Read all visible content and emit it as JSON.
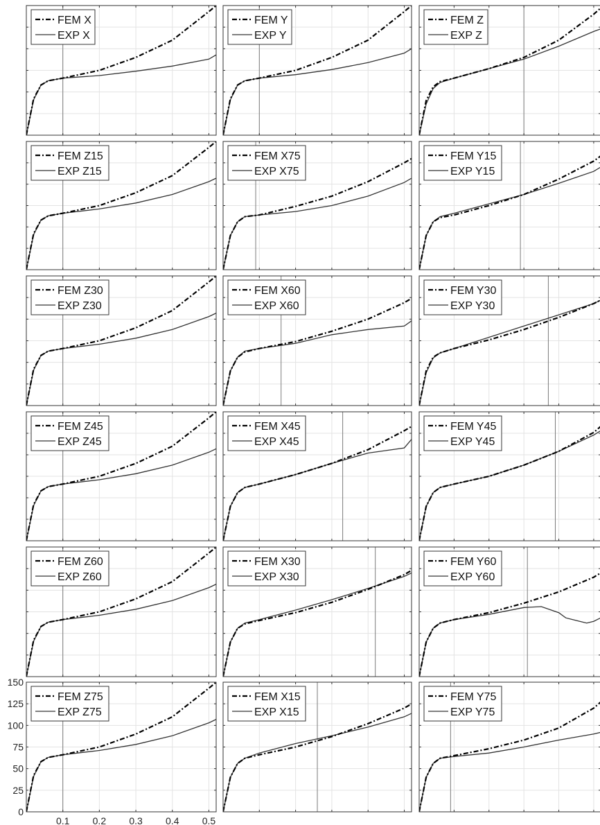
{
  "chart_data": {
    "type": "line",
    "layout": {
      "rows": 6,
      "cols": 3
    },
    "xlim": [
      0,
      0.52
    ],
    "ylim": [
      0,
      150
    ],
    "x_ticks": [
      0.1,
      0.2,
      0.3,
      0.4,
      0.5
    ],
    "x_tick_labels": [
      "0.1",
      "0.2",
      "0.3",
      "0.4",
      "0.5"
    ],
    "y_ticks": [
      0,
      25,
      50,
      75,
      100,
      125,
      150
    ],
    "y_tick_labels": [
      "0",
      "25",
      "50",
      "75",
      "100",
      "125",
      "150"
    ],
    "grid": true,
    "legend_location": "top-left",
    "colors": {
      "fem": "#000000",
      "exp": "#333333",
      "marker": "#7a7a7a",
      "grid": "#e3e3e3",
      "axis": "#333333"
    },
    "panels": [
      {
        "fem_label": "FEM X",
        "exp_label": "EXP X",
        "vline": 0.1,
        "fem": {
          "x": [
            0,
            0.02,
            0.04,
            0.06,
            0.1,
            0.2,
            0.3,
            0.4,
            0.5,
            0.52
          ],
          "y": [
            0,
            42,
            58,
            63,
            66,
            75,
            90,
            110,
            143,
            150
          ]
        },
        "exp": {
          "x": [
            0,
            0.02,
            0.04,
            0.06,
            0.1,
            0.2,
            0.3,
            0.4,
            0.5,
            0.52
          ],
          "y": [
            0,
            41,
            58,
            63,
            66,
            69,
            74,
            80,
            88,
            93
          ]
        }
      },
      {
        "fem_label": "FEM Y",
        "exp_label": "EXP Y",
        "vline": 0.1,
        "fem": {
          "x": [
            0,
            0.02,
            0.04,
            0.06,
            0.1,
            0.2,
            0.3,
            0.4,
            0.5,
            0.52
          ],
          "y": [
            0,
            42,
            58,
            63,
            66,
            75,
            90,
            110,
            143,
            150
          ]
        },
        "exp": {
          "x": [
            0,
            0.02,
            0.04,
            0.06,
            0.1,
            0.2,
            0.3,
            0.4,
            0.5,
            0.52
          ],
          "y": [
            0,
            41,
            58,
            63,
            66,
            70,
            76,
            84,
            95,
            100
          ]
        }
      },
      {
        "fem_label": "FEM Z",
        "exp_label": "EXP Z",
        "vline": 0.3,
        "fem": {
          "x": [
            0,
            0.02,
            0.04,
            0.06,
            0.1,
            0.2,
            0.3,
            0.4,
            0.5,
            0.52
          ],
          "y": [
            0,
            40,
            56,
            62,
            66,
            77,
            90,
            110,
            140,
            147
          ]
        },
        "exp": {
          "x": [
            0,
            0.02,
            0.04,
            0.06,
            0.1,
            0.2,
            0.3,
            0.4,
            0.5,
            0.52
          ],
          "y": [
            0,
            36,
            54,
            61,
            66,
            77,
            88,
            103,
            120,
            123
          ]
        }
      },
      {
        "fem_label": "FEM Z15",
        "exp_label": "EXP Z15",
        "vline": 0.1,
        "fem": {
          "x": [
            0,
            0.02,
            0.04,
            0.06,
            0.1,
            0.2,
            0.3,
            0.4,
            0.5,
            0.52
          ],
          "y": [
            0,
            42,
            58,
            63,
            66,
            75,
            90,
            110,
            143,
            150
          ]
        },
        "exp": {
          "x": [
            0,
            0.02,
            0.04,
            0.06,
            0.1,
            0.2,
            0.3,
            0.4,
            0.5,
            0.52
          ],
          "y": [
            0,
            41,
            58,
            63,
            66,
            71,
            78,
            88,
            103,
            107
          ]
        }
      },
      {
        "fem_label": "FEM X75",
        "exp_label": "EXP X75",
        "vline": 0.09,
        "fem": {
          "x": [
            0,
            0.02,
            0.04,
            0.06,
            0.1,
            0.2,
            0.3,
            0.4,
            0.5,
            0.52
          ],
          "y": [
            0,
            40,
            56,
            62,
            64,
            74,
            86,
            103,
            125,
            130
          ]
        },
        "exp": {
          "x": [
            0,
            0.02,
            0.04,
            0.06,
            0.1,
            0.2,
            0.3,
            0.4,
            0.5,
            0.52
          ],
          "y": [
            0,
            40,
            56,
            62,
            64,
            68,
            75,
            86,
            102,
            107
          ]
        }
      },
      {
        "fem_label": "FEM Y15",
        "exp_label": "EXP Y15",
        "vline": 0.29,
        "fem": {
          "x": [
            0,
            0.02,
            0.04,
            0.06,
            0.1,
            0.2,
            0.3,
            0.4,
            0.5,
            0.52
          ],
          "y": [
            0,
            40,
            56,
            61,
            64,
            75,
            88,
            106,
            127,
            133
          ]
        },
        "exp": {
          "x": [
            0,
            0.02,
            0.04,
            0.06,
            0.1,
            0.2,
            0.3,
            0.4,
            0.5,
            0.52
          ],
          "y": [
            0,
            40,
            56,
            62,
            66,
            77,
            88,
            101,
            115,
            120
          ]
        }
      },
      {
        "fem_label": "FEM Z30",
        "exp_label": "EXP Z30",
        "vline": 0.1,
        "fem": {
          "x": [
            0,
            0.02,
            0.04,
            0.06,
            0.1,
            0.2,
            0.3,
            0.4,
            0.5,
            0.52
          ],
          "y": [
            0,
            42,
            58,
            63,
            66,
            75,
            90,
            110,
            143,
            150
          ]
        },
        "exp": {
          "x": [
            0,
            0.02,
            0.04,
            0.06,
            0.1,
            0.2,
            0.3,
            0.4,
            0.5,
            0.52
          ],
          "y": [
            0,
            41,
            58,
            63,
            66,
            71,
            78,
            88,
            103,
            107
          ]
        }
      },
      {
        "fem_label": "FEM X60",
        "exp_label": "EXP X60",
        "vline": 0.16,
        "fem": {
          "x": [
            0,
            0.02,
            0.04,
            0.06,
            0.1,
            0.2,
            0.3,
            0.4,
            0.5,
            0.52
          ],
          "y": [
            0,
            40,
            56,
            62,
            66,
            74,
            86,
            100,
            119,
            124
          ]
        },
        "exp": {
          "x": [
            0,
            0.02,
            0.04,
            0.06,
            0.1,
            0.2,
            0.3,
            0.4,
            0.5,
            0.52
          ],
          "y": [
            0,
            40,
            56,
            63,
            66,
            72,
            82,
            88,
            92,
            98
          ]
        }
      },
      {
        "fem_label": "FEM Y30",
        "exp_label": "EXP Y30",
        "vline": 0.37,
        "fem": {
          "x": [
            0,
            0.02,
            0.04,
            0.06,
            0.1,
            0.2,
            0.3,
            0.4,
            0.5,
            0.52
          ],
          "y": [
            0,
            40,
            56,
            61,
            66,
            76,
            88,
            102,
            118,
            122
          ]
        },
        "exp": {
          "x": [
            0,
            0.02,
            0.04,
            0.06,
            0.1,
            0.2,
            0.3,
            0.4,
            0.5,
            0.52
          ],
          "y": [
            0,
            38,
            55,
            61,
            66,
            79,
            92,
            105,
            118,
            122
          ]
        }
      },
      {
        "fem_label": "FEM Z45",
        "exp_label": "EXP Z45",
        "vline": 0.1,
        "fem": {
          "x": [
            0,
            0.02,
            0.04,
            0.06,
            0.1,
            0.2,
            0.3,
            0.4,
            0.5,
            0.52
          ],
          "y": [
            0,
            42,
            58,
            63,
            66,
            75,
            90,
            110,
            143,
            150
          ]
        },
        "exp": {
          "x": [
            0,
            0.02,
            0.04,
            0.06,
            0.1,
            0.2,
            0.3,
            0.4,
            0.5,
            0.52
          ],
          "y": [
            0,
            41,
            58,
            63,
            66,
            71,
            78,
            88,
            103,
            107
          ]
        }
      },
      {
        "fem_label": "FEM X45",
        "exp_label": "EXP X45",
        "vline": 0.33,
        "fem": {
          "x": [
            0,
            0.02,
            0.04,
            0.06,
            0.1,
            0.2,
            0.3,
            0.4,
            0.5,
            0.52
          ],
          "y": [
            0,
            40,
            56,
            62,
            66,
            77,
            90,
            106,
            128,
            133
          ]
        },
        "exp": {
          "x": [
            0,
            0.02,
            0.04,
            0.06,
            0.1,
            0.2,
            0.3,
            0.4,
            0.5,
            0.52
          ],
          "y": [
            0,
            40,
            56,
            62,
            66,
            77,
            90,
            102,
            108,
            118
          ]
        }
      },
      {
        "fem_label": "FEM Y45",
        "exp_label": "EXP Y45",
        "vline": 0.39,
        "fem": {
          "x": [
            0,
            0.02,
            0.04,
            0.06,
            0.1,
            0.2,
            0.3,
            0.4,
            0.5,
            0.52
          ],
          "y": [
            0,
            40,
            56,
            62,
            66,
            75,
            88,
            104,
            126,
            133
          ]
        },
        "exp": {
          "x": [
            0,
            0.02,
            0.04,
            0.06,
            0.1,
            0.2,
            0.3,
            0.4,
            0.5,
            0.52
          ],
          "y": [
            0,
            40,
            56,
            62,
            66,
            75,
            88,
            104,
            123,
            128
          ]
        }
      },
      {
        "fem_label": "FEM Z60",
        "exp_label": "EXP Z60",
        "vline": 0.1,
        "fem": {
          "x": [
            0,
            0.02,
            0.04,
            0.06,
            0.1,
            0.2,
            0.3,
            0.4,
            0.5,
            0.52
          ],
          "y": [
            0,
            42,
            58,
            63,
            66,
            75,
            90,
            110,
            143,
            150
          ]
        },
        "exp": {
          "x": [
            0,
            0.02,
            0.04,
            0.06,
            0.1,
            0.2,
            0.3,
            0.4,
            0.5,
            0.52
          ],
          "y": [
            0,
            41,
            58,
            63,
            66,
            71,
            78,
            88,
            103,
            107
          ]
        }
      },
      {
        "fem_label": "FEM X30",
        "exp_label": "EXP X30",
        "vline": 0.42,
        "fem": {
          "x": [
            0,
            0.02,
            0.04,
            0.06,
            0.1,
            0.2,
            0.3,
            0.4,
            0.5,
            0.52
          ],
          "y": [
            0,
            40,
            56,
            61,
            65,
            74,
            86,
            101,
            118,
            123
          ]
        },
        "exp": {
          "x": [
            0,
            0.02,
            0.04,
            0.06,
            0.1,
            0.2,
            0.3,
            0.4,
            0.5,
            0.52
          ],
          "y": [
            0,
            40,
            56,
            62,
            66,
            77,
            89,
            102,
            116,
            120
          ]
        }
      },
      {
        "fem_label": "FEM Y60",
        "exp_label": "EXP Y60",
        "vline": 0.31,
        "fem": {
          "x": [
            0,
            0.02,
            0.04,
            0.06,
            0.1,
            0.2,
            0.3,
            0.4,
            0.5,
            0.52
          ],
          "y": [
            0,
            40,
            56,
            62,
            66,
            74,
            85,
            98,
            115,
            120
          ]
        },
        "exp": {
          "x": [
            0,
            0.02,
            0.04,
            0.06,
            0.1,
            0.2,
            0.3,
            0.35,
            0.4,
            0.42,
            0.45,
            0.48,
            0.5,
            0.52
          ],
          "y": [
            0,
            40,
            56,
            62,
            66,
            72,
            80,
            81,
            74,
            68,
            65,
            62,
            64,
            68
          ]
        }
      },
      {
        "fem_label": "FEM Z75",
        "exp_label": "EXP Z75",
        "vline": 0.1,
        "fem": {
          "x": [
            0,
            0.02,
            0.04,
            0.06,
            0.1,
            0.2,
            0.3,
            0.4,
            0.5,
            0.52
          ],
          "y": [
            0,
            42,
            58,
            63,
            66,
            75,
            90,
            110,
            143,
            150
          ]
        },
        "exp": {
          "x": [
            0,
            0.02,
            0.04,
            0.06,
            0.1,
            0.2,
            0.3,
            0.4,
            0.5,
            0.52
          ],
          "y": [
            0,
            41,
            58,
            63,
            66,
            71,
            78,
            88,
            103,
            107
          ]
        }
      },
      {
        "fem_label": "FEM X15",
        "exp_label": "EXP X15",
        "vline": 0.26,
        "fem": {
          "x": [
            0,
            0.02,
            0.04,
            0.06,
            0.1,
            0.2,
            0.3,
            0.4,
            0.5,
            0.52
          ],
          "y": [
            0,
            40,
            56,
            62,
            66,
            75,
            87,
            102,
            120,
            125
          ]
        },
        "exp": {
          "x": [
            0,
            0.02,
            0.04,
            0.06,
            0.1,
            0.2,
            0.3,
            0.4,
            0.5,
            0.52
          ],
          "y": [
            0,
            40,
            56,
            62,
            68,
            79,
            88,
            98,
            110,
            114
          ]
        }
      },
      {
        "fem_label": "FEM Y75",
        "exp_label": "EXP Y75",
        "vline": 0.09,
        "fem": {
          "x": [
            0,
            0.02,
            0.04,
            0.06,
            0.1,
            0.2,
            0.3,
            0.4,
            0.5,
            0.52
          ],
          "y": [
            0,
            40,
            56,
            62,
            65,
            73,
            83,
            97,
            120,
            127
          ]
        },
        "exp": {
          "x": [
            0,
            0.02,
            0.04,
            0.06,
            0.1,
            0.2,
            0.3,
            0.4,
            0.5,
            0.52
          ],
          "y": [
            0,
            40,
            56,
            62,
            64,
            68,
            75,
            83,
            90,
            92
          ]
        }
      }
    ]
  }
}
